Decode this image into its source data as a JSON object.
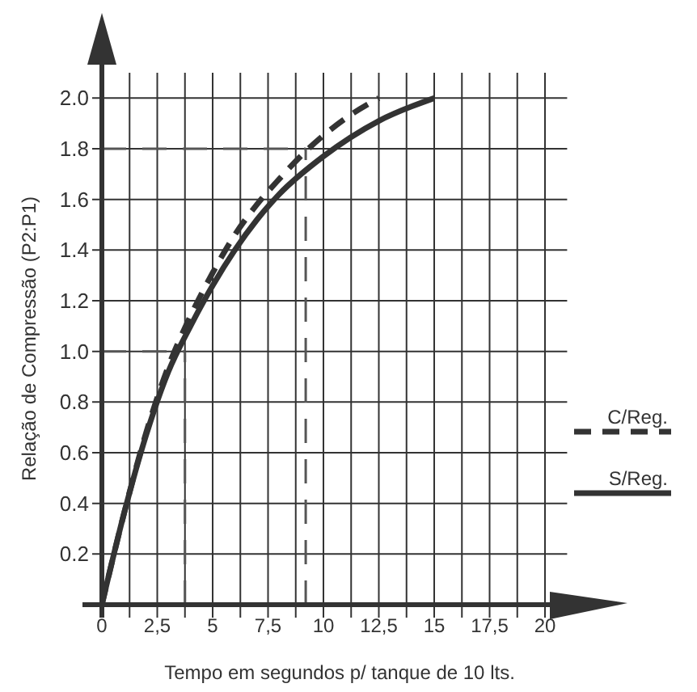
{
  "chart_data": {
    "type": "line",
    "xlabel": "Tempo em segundos p/ tanque de 10 lts.",
    "ylabel": "Relação de Compressão (P2:P1)",
    "xlim": [
      0,
      21
    ],
    "ylim": [
      0,
      2.1
    ],
    "xticks": [
      0,
      {
        "value": 1.25,
        "label": null
      },
      {
        "value": 2.5,
        "label": "2,5"
      },
      {
        "value": 3.75,
        "label": null
      },
      5,
      {
        "value": 6.25,
        "label": null
      },
      {
        "value": 7.5,
        "label": "7,5"
      },
      {
        "value": 8.75,
        "label": null
      },
      10,
      {
        "value": 11.25,
        "label": null
      },
      {
        "value": 12.5,
        "label": "12,5"
      },
      {
        "value": 13.75,
        "label": null
      },
      15,
      {
        "value": 16.25,
        "label": null
      },
      {
        "value": 17.5,
        "label": "17,5"
      },
      {
        "value": 18.75,
        "label": null
      },
      20
    ],
    "yticks": [
      0.2,
      0.4,
      0.6,
      0.8,
      {
        "value": 1.0,
        "label": "1.0"
      },
      1.2,
      1.4,
      1.6,
      1.8,
      {
        "value": 2.0,
        "label": "2.0"
      }
    ],
    "grid": true,
    "legend": "right",
    "series": [
      {
        "name": "C/Reg.",
        "color": "#333333",
        "line_style": "dashed",
        "x": [
          0,
          1,
          2,
          3,
          4,
          5,
          6,
          7,
          8,
          9.2,
          11,
          12.5
        ],
        "values": [
          0,
          0.36,
          0.68,
          0.94,
          1.14,
          1.31,
          1.46,
          1.58,
          1.68,
          1.79,
          1.92,
          2.0
        ]
      },
      {
        "name": "S/Reg.",
        "color": "#333333",
        "line_style": "solid",
        "x": [
          0,
          1,
          2,
          3,
          4,
          5,
          6,
          7,
          8,
          10,
          12.5,
          15
        ],
        "values": [
          0,
          0.36,
          0.67,
          0.92,
          1.1,
          1.26,
          1.4,
          1.52,
          1.62,
          1.77,
          1.91,
          2.0
        ]
      }
    ],
    "ref_lines": [
      {
        "axis": "y",
        "value": 1.0,
        "line_style": "dashed",
        "color": "#555555"
      },
      {
        "axis": "x",
        "value": 3.75,
        "line_style": "dashed",
        "color": "#555555"
      },
      {
        "axis": "y",
        "value": 1.8,
        "line_style": "dashed",
        "color": "#555555"
      },
      {
        "axis": "x",
        "value": 9.2,
        "line_style": "dashed",
        "color": "#555555"
      }
    ]
  }
}
